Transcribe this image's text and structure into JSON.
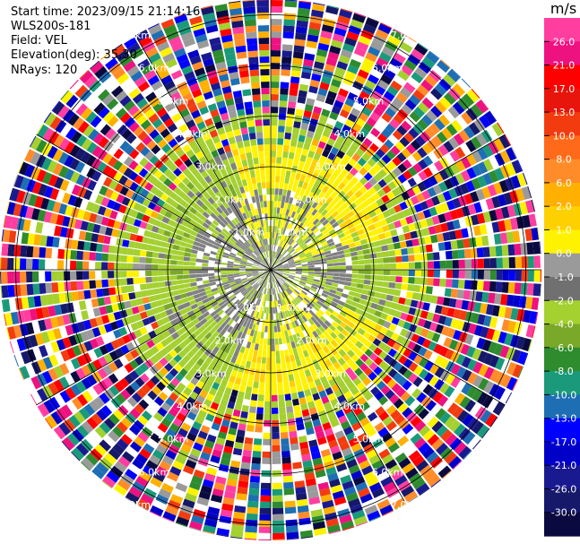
{
  "header": {
    "start_time": "Start time: 2023/09/15 21:14:16",
    "instrument": "WLS200s-181",
    "field": "Field: VEL",
    "elevation": "Elevation(deg): 35.30",
    "nrays": "NRays: 120"
  },
  "colorbar": {
    "unit": "m/s",
    "ticks": [
      "26.0",
      "21.0",
      "17.0",
      "13.0",
      "10.0",
      "8.0",
      "6.0",
      "2.0",
      "1.0",
      "0.0",
      "-1.0",
      "-2.0",
      "-4.0",
      "-6.0",
      "-8.0",
      "-10.0",
      "-13.0",
      "-17.0",
      "-21.0",
      "-26.0",
      "-30.0"
    ],
    "colors": [
      "#ff3ea0",
      "#ee1180",
      "#ff0000",
      "#e8150c",
      "#f23c10",
      "#ff6a1a",
      "#ff8c28",
      "#ffb000",
      "#ffd000",
      "#fff200",
      "#9a9a9a",
      "#707070",
      "#a4d030",
      "#7aa828",
      "#2e8b2e",
      "#1a9a7a",
      "#1e6eb4",
      "#0000ff",
      "#0000c8",
      "#1a1a90",
      "#16186a",
      "#0a0a40"
    ]
  },
  "chart_data": {
    "type": "heatmap",
    "projection": "polar-ppi",
    "field": "VEL",
    "nrays": 120,
    "value_range": [
      -30.0,
      26.0
    ],
    "ring_labels": [
      "1.0km",
      "2.0km",
      "3.0km",
      "4.0km",
      "5.0km",
      "6.0km",
      "7.0km"
    ]
  }
}
